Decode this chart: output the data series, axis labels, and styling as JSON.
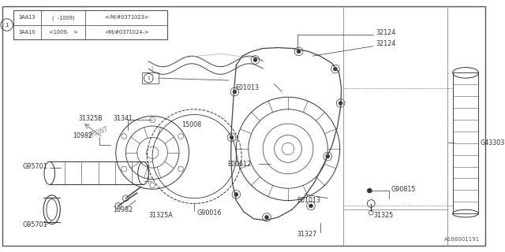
{
  "bg_color": "#ffffff",
  "watermark": "A168001191",
  "table_rows": [
    [
      "3AA13",
      "(  -1009)",
      "<-M/#0371023>"
    ],
    [
      "3AA10",
      "<1009-   >",
      "<M/#0371024->"
    ]
  ],
  "fig_w": 6.4,
  "fig_h": 3.2,
  "dpi": 100
}
